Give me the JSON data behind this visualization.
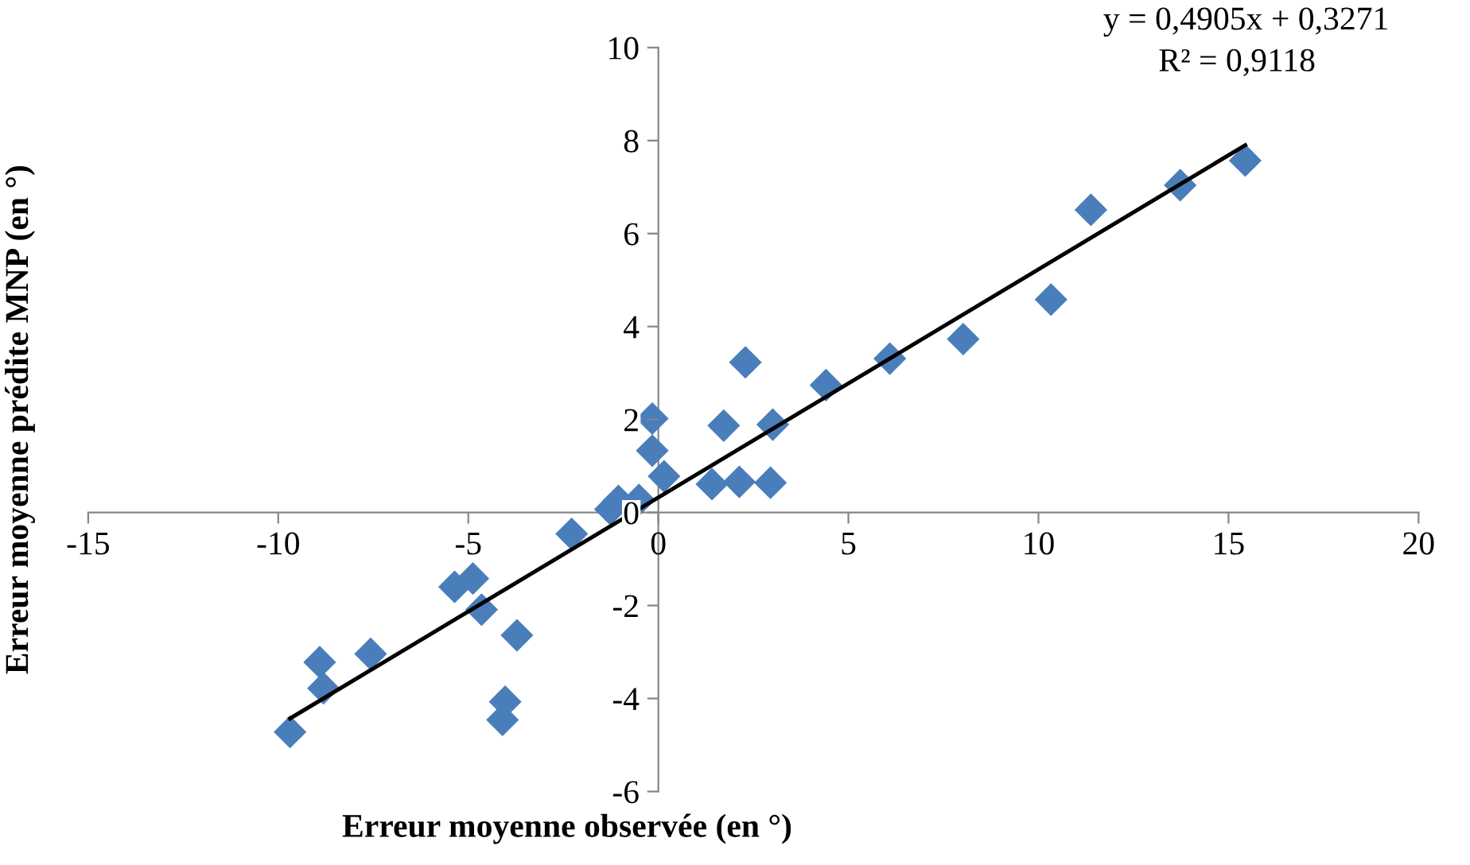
{
  "chart_data": {
    "type": "scatter",
    "xlabel": "Erreur moyenne observée (en °)",
    "ylabel": "Erreur moyenne prédite MNP (en °)",
    "xlim": [
      -15,
      20
    ],
    "xticks": [
      -15,
      -10,
      -5,
      0,
      5,
      10,
      15,
      20
    ],
    "ylim": [
      -6,
      10
    ],
    "yticks": [
      -6,
      -4,
      -2,
      0,
      2,
      4,
      6,
      8,
      10
    ],
    "grid": false,
    "legend": false,
    "annotations": [
      "y = 0,4905x + 0,3271",
      "R² = 0,9118"
    ],
    "series": [
      {
        "color": "#4a7ebb",
        "marker": "diamond",
        "x": [
          -9.69,
          -8.91,
          -8.81,
          -7.57,
          -5.36,
          -4.88,
          -4.65,
          -3.72,
          -4.03,
          -4.1,
          -2.28,
          -1.26,
          -1.05,
          -0.51,
          -0.16,
          -0.16,
          0.15,
          1.41,
          2.13,
          2.95,
          1.72,
          3.01,
          2.29,
          4.41,
          6.09,
          8.02,
          10.33,
          11.38,
          13.73,
          15.44
        ],
        "values": [
          -4.72,
          -3.22,
          -3.78,
          -3.04,
          -1.6,
          -1.42,
          -2.09,
          -2.64,
          -4.07,
          -4.46,
          -0.46,
          0.07,
          0.25,
          0.27,
          2.02,
          1.33,
          0.78,
          0.61,
          0.66,
          0.64,
          1.87,
          1.89,
          3.23,
          2.74,
          3.31,
          3.73,
          4.58,
          6.51,
          7.04,
          7.57
        ]
      },
      {
        "type": "line",
        "color": "#000000",
        "marker": "none",
        "line_style": "solid",
        "x": [
          -9.69,
          15.44
        ],
        "values": [
          -4.43,
          7.9
        ]
      }
    ]
  }
}
